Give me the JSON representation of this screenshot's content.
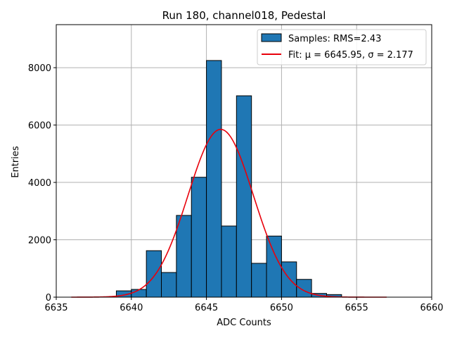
{
  "chart_data": {
    "type": "bar",
    "title": "Run 180, channel018, Pedestal",
    "xlabel": "ADC Counts",
    "ylabel": "Entries",
    "xlim": [
      6635,
      6660
    ],
    "ylim": [
      0,
      9500
    ],
    "xticks": [
      6635,
      6640,
      6645,
      6650,
      6655,
      6660
    ],
    "yticks": [
      0,
      2000,
      4000,
      6000,
      8000
    ],
    "grid": true,
    "legend_position": "top-right",
    "bin_width": 1,
    "bins": [
      {
        "x": 6639,
        "value": 220
      },
      {
        "x": 6640,
        "value": 270
      },
      {
        "x": 6641,
        "value": 1620
      },
      {
        "x": 6642,
        "value": 860
      },
      {
        "x": 6643,
        "value": 2850
      },
      {
        "x": 6644,
        "value": 4180
      },
      {
        "x": 6645,
        "value": 8250
      },
      {
        "x": 6646,
        "value": 2480
      },
      {
        "x": 6647,
        "value": 7020
      },
      {
        "x": 6648,
        "value": 1180
      },
      {
        "x": 6649,
        "value": 2130
      },
      {
        "x": 6650,
        "value": 1230
      },
      {
        "x": 6651,
        "value": 620
      },
      {
        "x": 6652,
        "value": 130
      },
      {
        "x": 6653,
        "value": 90
      }
    ],
    "fit": {
      "type": "gaussian",
      "mu": 6645.95,
      "sigma": 2.177,
      "amplitude": 5850,
      "x_range": [
        6636,
        6657
      ]
    },
    "legend": [
      {
        "label": "Samples: RMS=2.43",
        "kind": "bar"
      },
      {
        "label": "Fit: μ = 6645.95, σ = 2.177",
        "kind": "line"
      }
    ],
    "colors": {
      "bar_fill": "#1f77b4",
      "bar_edge": "#000000",
      "fit_line": "#e8000b",
      "grid": "#b0b0b0"
    }
  }
}
